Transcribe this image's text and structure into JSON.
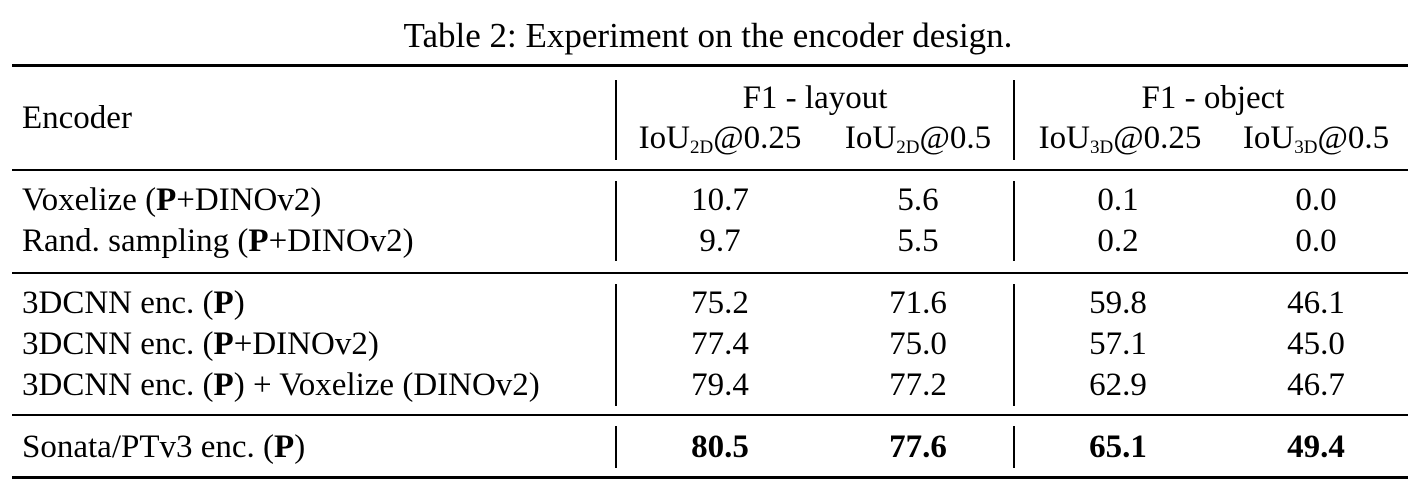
{
  "caption": "Table 2: Experiment on the encoder design.",
  "header": {
    "encoder": "Encoder",
    "group_layout": "F1 - layout",
    "group_object": "F1 - object",
    "cols": [
      {
        "pre": "IoU",
        "sub": "2D",
        "post": "@0.25"
      },
      {
        "pre": "IoU",
        "sub": "2D",
        "post": "@0.5"
      },
      {
        "pre": "IoU",
        "sub": "3D",
        "post": "@0.25"
      },
      {
        "pre": "IoU",
        "sub": "3D",
        "post": "@0.5"
      }
    ]
  },
  "rows": [
    {
      "label": {
        "a": "Voxelize (",
        "p": "P",
        "b": "+DINOv2)"
      },
      "values": [
        "10.7",
        "5.6",
        "0.1",
        "0.0"
      ]
    },
    {
      "label": {
        "a": "Rand. sampling (",
        "p": "P",
        "b": "+DINOv2)"
      },
      "values": [
        "9.7",
        "5.5",
        "0.2",
        "0.0"
      ]
    },
    {
      "label": {
        "a": "3DCNN enc. (",
        "p": "P",
        "b": ")"
      },
      "values": [
        "75.2",
        "71.6",
        "59.8",
        "46.1"
      ]
    },
    {
      "label": {
        "a": "3DCNN enc. (",
        "p": "P",
        "b": "+DINOv2)"
      },
      "values": [
        "77.4",
        "75.0",
        "57.1",
        "45.0"
      ]
    },
    {
      "label": {
        "a": "3DCNN enc. (",
        "p": "P",
        "b": ") + Voxelize (DINOv2)"
      },
      "values": [
        "79.4",
        "77.2",
        "62.9",
        "46.7"
      ]
    },
    {
      "label": {
        "a": "Sonata/PTv3 enc. (",
        "p": "P",
        "b": ")"
      },
      "values": [
        "80.5",
        "77.6",
        "65.1",
        "49.4"
      ]
    }
  ]
}
